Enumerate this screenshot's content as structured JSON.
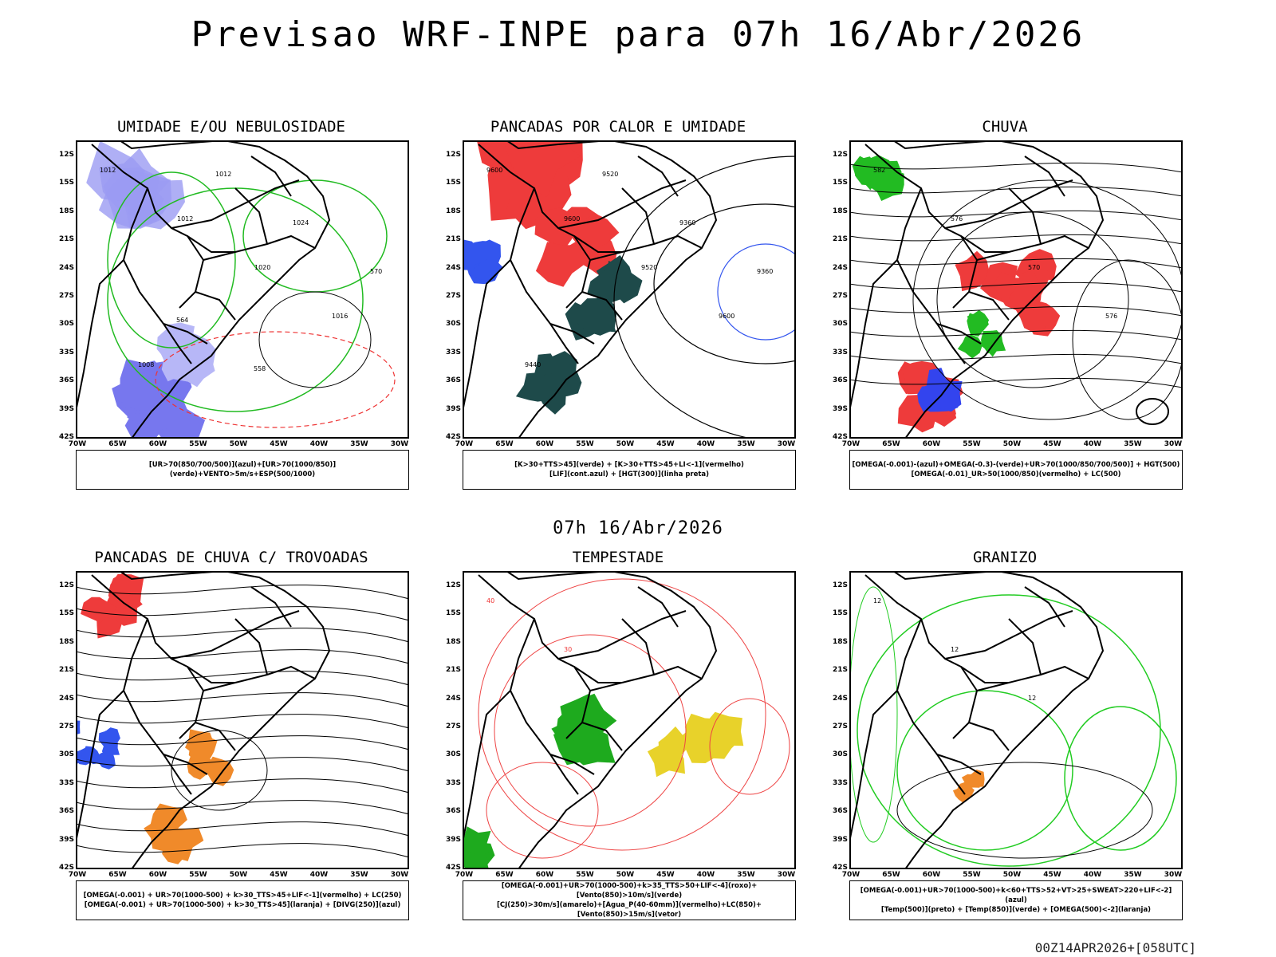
{
  "header": {
    "title": "Previsao WRF-INPE  para 07h 16/Abr/2026"
  },
  "middle": {
    "title": "07h 16/Abr/2026"
  },
  "footer": {
    "stamp": "00Z14APR2026+[058UTC]"
  },
  "axes": {
    "lat_labels": [
      "12S",
      "15S",
      "18S",
      "21S",
      "24S",
      "27S",
      "30S",
      "33S",
      "36S",
      "39S",
      "42S"
    ],
    "lon_labels": [
      "70W",
      "65W",
      "60W",
      "55W",
      "50W",
      "45W",
      "40W",
      "35W",
      "30W"
    ]
  },
  "panels": [
    {
      "title": "UMIDADE E/OU NEBULOSIDADE",
      "legend": [
        "[UR>70(850/700/500)](azul)+[UR>70(1000/850)](verde)+VENTO>5m/s+ESP(500/1000)"
      ],
      "contour_labels": [
        "1012",
        "1012",
        "1020",
        "1016",
        "1008",
        "1012",
        "1024",
        "570",
        "564",
        "558"
      ]
    },
    {
      "title": "PANCADAS POR CALOR E UMIDADE",
      "legend": [
        "[K>30+TTS>45](verde) + [K>30+TTS>45+LI<-1](vermelho)",
        "[LIF](cont.azul) + [HGT(300)](linha preta)"
      ],
      "contour_labels": [
        "9600",
        "9600",
        "9520",
        "9600",
        "9440",
        "9520",
        "9360",
        "9360"
      ]
    },
    {
      "title": "CHUVA",
      "legend": [
        "[OMEGA(-0.001)-(azul)+OMEGA(-0.3)-(verde)+UR>70(1000/850/700/500)] + HGT(500)",
        "[OMEGA(-0.01)_UR>50(1000/850)(vermelho) + LC(500)"
      ],
      "contour_labels": [
        "582",
        "576",
        "570",
        "576"
      ]
    },
    {
      "title": "PANCADAS DE CHUVA C/ TROVOADAS",
      "legend": [
        "[OMEGA(-0.001) + UR>70(1000-500) + k>30_TTS>45+LIF<-1](vermelho) + LC(250)",
        "[OMEGA(-0.001) + UR>70(1000-500) + k>30_TTS>45](laranja) + [DIVG(250)](azul)"
      ]
    },
    {
      "title": "TEMPESTADE",
      "legend": [
        "[OMEGA(-0.001)+UR>70(1000-500)+k>35_TTS>50+LIF<-4](roxo)+[Vento(850)>10m/s](verde)",
        "[CJ(250)>30m/s](amarelo)+[Agua_P(40-60mm)](vermelho)+LC(850)+[Vento(850)>15m/s](vetor)"
      ],
      "contour_labels": [
        "40",
        "30"
      ]
    },
    {
      "title": "GRANIZO",
      "legend": [
        "[OMEGA(-0.001)+UR>70(1000-500)+k<60+TTS>52+VT>25+SWEAT>220+LIF<-2](azul)",
        "[Temp(500)](preto) + [Temp(850)](verde) + [OMEGA(500)<-2](laranja)"
      ],
      "contour_labels": [
        "12",
        "12",
        "12"
      ]
    }
  ]
}
